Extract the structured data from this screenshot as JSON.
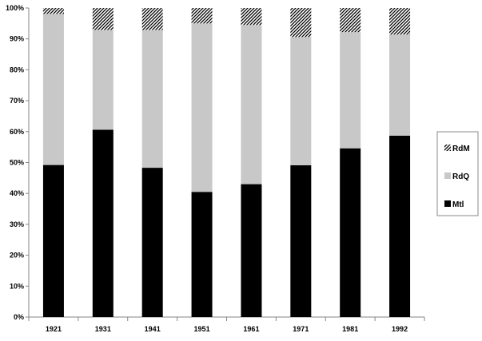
{
  "chart_data": {
    "type": "bar",
    "stacked": true,
    "percent": true,
    "categories": [
      "1921",
      "1931",
      "1941",
      "1951",
      "1961",
      "1971",
      "1981",
      "1992"
    ],
    "series": [
      {
        "name": "Mtl",
        "values": [
          49.2,
          60.6,
          48.3,
          40.5,
          43.0,
          49.1,
          54.6,
          58.7
        ],
        "color": "#000000",
        "fill": "solid"
      },
      {
        "name": "RdQ",
        "values": [
          48.9,
          32.3,
          44.6,
          54.5,
          51.5,
          41.5,
          37.6,
          32.7
        ],
        "color": "#c8c8c8",
        "fill": "solid"
      },
      {
        "name": "RdM",
        "values": [
          1.9,
          7.1,
          7.1,
          5.0,
          5.5,
          9.4,
          7.8,
          8.6
        ],
        "color": "#000000",
        "fill": "hatched"
      }
    ],
    "ylim": [
      0,
      100
    ],
    "yticks": [
      "0%",
      "10%",
      "20%",
      "30%",
      "40%",
      "50%",
      "60%",
      "70%",
      "80%",
      "90%",
      "100%"
    ],
    "grid": false,
    "legend": {
      "position": "right",
      "entries": [
        "RdM",
        "RdQ",
        "Mtl"
      ]
    },
    "title": "",
    "xlabel": "",
    "ylabel": ""
  }
}
